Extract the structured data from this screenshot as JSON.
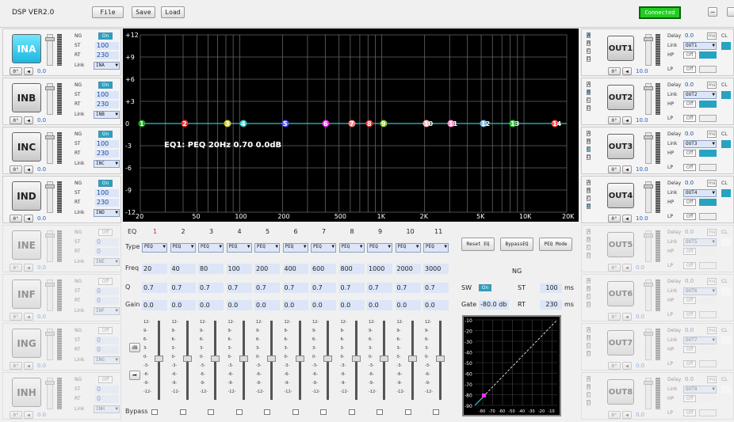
{
  "app": {
    "title": "DSP VER2.0"
  },
  "toolbar": {
    "file": "File",
    "save": "Save",
    "load": "Load",
    "status": "Connected"
  },
  "inputs": [
    {
      "name": "INA",
      "mute": "0°",
      "vol": "0.0",
      "ng_label": "NG",
      "ng": "On",
      "st_label": "ST",
      "st": "100",
      "rt_label": "RT",
      "rt": "230",
      "link_label": "Link",
      "link": "INA",
      "active": true
    },
    {
      "name": "INB",
      "mute": "0°",
      "vol": "0.0",
      "ng_label": "NG",
      "ng": "On",
      "st_label": "ST",
      "st": "100",
      "rt_label": "RT",
      "rt": "230",
      "link_label": "Link",
      "link": "INB",
      "active": false
    },
    {
      "name": "INC",
      "mute": "0°",
      "vol": "0.0",
      "ng_label": "NG",
      "ng": "On",
      "st_label": "ST",
      "st": "100",
      "rt_label": "RT",
      "rt": "230",
      "link_label": "Link",
      "link": "INC",
      "active": false
    },
    {
      "name": "IND",
      "mute": "0°",
      "vol": "0.0",
      "ng_label": "NG",
      "ng": "On",
      "st_label": "ST",
      "st": "100",
      "rt_label": "RT",
      "rt": "230",
      "link_label": "Link",
      "link": "IND",
      "active": false
    },
    {
      "name": "INE",
      "mute": "0°",
      "vol": "0.0",
      "ng_label": "NG",
      "ng": "Off",
      "st_label": "ST",
      "st": "0",
      "rt_label": "RT",
      "rt": "0",
      "link_label": "Link",
      "link": "INE",
      "active": false,
      "disabled": true
    },
    {
      "name": "INF",
      "mute": "0°",
      "vol": "0.0",
      "ng_label": "NG",
      "ng": "Off",
      "st_label": "ST",
      "st": "0",
      "rt_label": "RT",
      "rt": "0",
      "link_label": "Link",
      "link": "INF",
      "active": false,
      "disabled": true
    },
    {
      "name": "ING",
      "mute": "0°",
      "vol": "0.0",
      "ng_label": "NG",
      "ng": "Off",
      "st_label": "ST",
      "st": "0",
      "rt_label": "RT",
      "rt": "0",
      "link_label": "Link",
      "link": "ING",
      "active": false,
      "disabled": true
    },
    {
      "name": "INH",
      "mute": "0°",
      "vol": "0.0",
      "ng_label": "NG",
      "ng": "Off",
      "st_label": "ST",
      "st": "0",
      "rt_label": "RT",
      "rt": "0",
      "link_label": "Link",
      "link": "INH",
      "active": false,
      "disabled": true
    }
  ],
  "outputs": [
    {
      "name": "OUT1",
      "mute": "0°",
      "vol": "10.0",
      "delay_label": "Delay",
      "delay": "0.0",
      "unit": "ms",
      "cl": "CL",
      "link_label": "Link",
      "link": "OUT1",
      "hp_label": "HP",
      "hp": "Off",
      "lp_label": "LP",
      "lp": "Off",
      "active_group": 0
    },
    {
      "name": "OUT2",
      "mute": "0°",
      "vol": "10.0",
      "delay_label": "Delay",
      "delay": "0.0",
      "unit": "ms",
      "cl": "CL",
      "link_label": "Link",
      "link": "OUT2",
      "hp_label": "HP",
      "hp": "Off",
      "lp_label": "LP",
      "lp": "Off",
      "active_group": 1
    },
    {
      "name": "OUT3",
      "mute": "0°",
      "vol": "10.0",
      "delay_label": "Delay",
      "delay": "0.0",
      "unit": "ms",
      "cl": "CL",
      "link_label": "Link",
      "link": "OUT3",
      "hp_label": "HP",
      "hp": "Off",
      "lp_label": "LP",
      "lp": "Off",
      "active_group": 2
    },
    {
      "name": "OUT4",
      "mute": "0°",
      "vol": "10.0",
      "delay_label": "Delay",
      "delay": "0.0",
      "unit": "ms",
      "cl": "CL",
      "link_label": "Link",
      "link": "OUT4",
      "hp_label": "HP",
      "hp": "Off",
      "lp_label": "LP",
      "lp": "Off",
      "active_group": 3
    },
    {
      "name": "OUT5",
      "mute": "0°",
      "vol": "0.0",
      "delay_label": "Delay",
      "delay": "0.0",
      "unit": "ms",
      "cl": "CL",
      "link_label": "Link",
      "link": "OUT5",
      "hp_label": "HP",
      "hp": "Off",
      "lp_label": "LP",
      "lp": "Off",
      "disabled": true
    },
    {
      "name": "OUT6",
      "mute": "0°",
      "vol": "0.0",
      "delay_label": "Delay",
      "delay": "0.0",
      "unit": "ms",
      "cl": "CL",
      "link_label": "Link",
      "link": "OUT6",
      "hp_label": "HP",
      "hp": "Off",
      "lp_label": "LP",
      "lp": "Off",
      "disabled": true
    },
    {
      "name": "OUT7",
      "mute": "0°",
      "vol": "0.0",
      "delay_label": "Delay",
      "delay": "0.0",
      "unit": "ms",
      "cl": "CL",
      "link_label": "Link",
      "link": "OUT7",
      "hp_label": "HP",
      "hp": "Off",
      "lp_label": "LP",
      "lp": "Off",
      "disabled": true
    },
    {
      "name": "OUT8",
      "mute": "0°",
      "vol": "0.0",
      "delay_label": "Delay",
      "delay": "0.0",
      "unit": "ms",
      "cl": "CL",
      "link_label": "Link",
      "link": "OUT8",
      "hp_label": "HP",
      "hp": "Off",
      "lp_label": "LP",
      "lp": "Off",
      "disabled": true
    }
  ],
  "group_letters": [
    "A",
    "B",
    "C",
    "D"
  ],
  "graph": {
    "y_ticks": [
      "+12",
      "+9",
      "+6",
      "+3",
      "0",
      "-3",
      "-6",
      "-9",
      "-12"
    ],
    "x_ticks": [
      "20",
      "50",
      "100",
      "200",
      "500",
      "1K",
      "2K",
      "5K",
      "10K",
      "20K"
    ],
    "readout": "EQ1: PEQ 20Hz 0.70 0.0dB",
    "nodes": [
      "1",
      "2",
      "3",
      "4",
      "5",
      "6",
      "7",
      "8",
      "9",
      "10",
      "11",
      "12",
      "13",
      "14"
    ]
  },
  "eq": {
    "eq_label": "EQ",
    "type_label": "Type",
    "freq_label": "Freq",
    "q_label": "Q",
    "gain_label": "Gain",
    "bypass_label": "Bypass",
    "bands": [
      {
        "n": "1",
        "type": "PEQ",
        "freq": "20",
        "q": "0.7",
        "gain": "0.0"
      },
      {
        "n": "2",
        "type": "PEQ",
        "freq": "40",
        "q": "0.7",
        "gain": "0.0"
      },
      {
        "n": "3",
        "type": "PEQ",
        "freq": "80",
        "q": "0.7",
        "gain": "0.0"
      },
      {
        "n": "4",
        "type": "PEQ",
        "freq": "100",
        "q": "0.7",
        "gain": "0.0"
      },
      {
        "n": "5",
        "type": "PEQ",
        "freq": "200",
        "q": "0.7",
        "gain": "0.0"
      },
      {
        "n": "6",
        "type": "PEQ",
        "freq": "400",
        "q": "0.7",
        "gain": "0.0"
      },
      {
        "n": "7",
        "type": "PEQ",
        "freq": "600",
        "q": "0.7",
        "gain": "0.0"
      },
      {
        "n": "8",
        "type": "PEQ",
        "freq": "800",
        "q": "0.7",
        "gain": "0.0"
      },
      {
        "n": "9",
        "type": "PEQ",
        "freq": "1000",
        "q": "0.7",
        "gain": "0.0"
      },
      {
        "n": "10",
        "type": "PEQ",
        "freq": "2000",
        "q": "0.7",
        "gain": "0.0"
      },
      {
        "n": "11",
        "type": "PEQ",
        "freq": "3000",
        "q": "0.7",
        "gain": "0.0"
      }
    ],
    "fader_ticks": [
      "12-",
      "9-",
      "6-",
      "3-",
      "0-",
      "-3-",
      "-6-",
      "-9-",
      "-12-"
    ],
    "db_button": "dB"
  },
  "side": {
    "reset": "Reset EQ",
    "bypass": "BypassEQ",
    "mode": "PEQ Mode"
  },
  "ng": {
    "title": "NG",
    "sw_label": "SW",
    "sw": "On",
    "st_label": "ST",
    "st": "100",
    "st_unit": "ms",
    "gate_label": "Gate",
    "gate": "-80.0 db",
    "rt_label": "RT",
    "rt": "230",
    "rt_unit": "ms",
    "y_ticks": [
      "-10",
      "-20",
      "-30",
      "-40",
      "-50",
      "-60",
      "-70",
      "-80",
      "-90"
    ],
    "x_ticks": [
      "-80",
      "-70",
      "-60",
      "-50",
      "-40",
      "-30",
      "-20",
      "-10"
    ]
  },
  "colors": {
    "graph_bg": "#000000",
    "accent": "#27a3c2",
    "connected": "#22cc22",
    "curve": "#2ec2c8"
  }
}
